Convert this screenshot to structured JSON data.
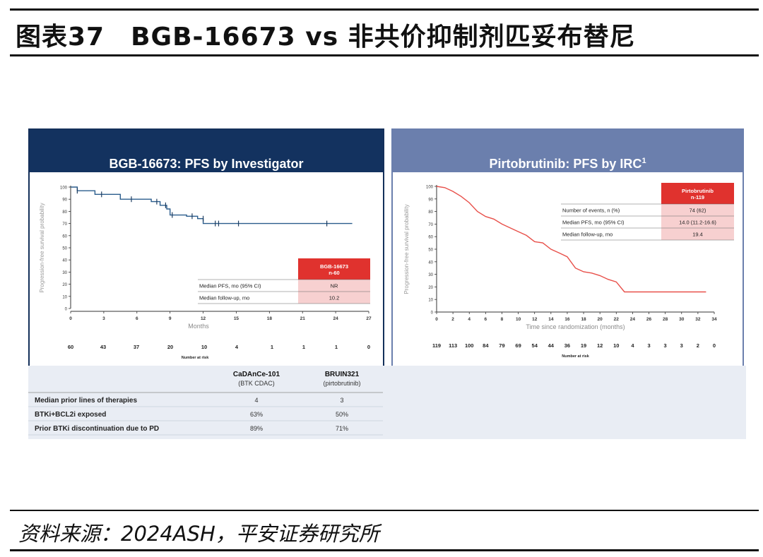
{
  "header": {
    "title": "图表37　BGB-16673 vs 非共价抑制剂匹妥布替尼"
  },
  "footer": {
    "source": "资料来源：2024ASH，平安证券研究所"
  },
  "colors": {
    "left_header": "#13325f",
    "right_header": "#6b7fad",
    "left_curve": "#2a5c8c",
    "right_curve": "#e8504a",
    "highlight": "#f6c9c9",
    "badge": "#e0322e"
  },
  "chart_data": [
    {
      "type": "line",
      "title": "BGB-16673: PFS by Investigator",
      "xlabel": "Months",
      "ylabel": "Progression-free survival probability",
      "xlim": [
        0,
        27
      ],
      "ylim": [
        0,
        100
      ],
      "xticks": [
        0,
        3,
        6,
        9,
        12,
        15,
        18,
        21,
        24,
        27
      ],
      "yticks": [
        0,
        10,
        20,
        30,
        40,
        50,
        60,
        70,
        80,
        90,
        100
      ],
      "series": [
        {
          "name": "BGB-16673",
          "x": [
            0,
            0.6,
            0.6,
            2.2,
            2.2,
            4.5,
            4.5,
            7.3,
            7.3,
            8.1,
            8.1,
            8.7,
            8.7,
            9.0,
            9.0,
            10.5,
            10.5,
            11.5,
            11.5,
            12.0,
            12.0,
            25.5
          ],
          "y": [
            100,
            100,
            97,
            97,
            94,
            94,
            90,
            90,
            88,
            88,
            85,
            85,
            82,
            82,
            77,
            77,
            76,
            76,
            74,
            74,
            70,
            70
          ]
        }
      ],
      "censored": {
        "x": [
          0.6,
          2.8,
          5.5,
          7.8,
          8.6,
          9.2,
          11.0,
          12.0,
          13.1,
          13.4,
          15.2,
          23.2
        ],
        "y": [
          97,
          94,
          90,
          88,
          85,
          77,
          76,
          74,
          70,
          70,
          70,
          70
        ]
      },
      "risk_table": {
        "label": "Number at risk",
        "values": [
          "60",
          "43",
          "37",
          "20",
          "10",
          "4",
          "1",
          "1",
          "1",
          "0"
        ]
      },
      "stats": {
        "badge": [
          "BGB-16673",
          "n-60"
        ],
        "rows": [
          {
            "label": "Median PFS, mo (95% CI)",
            "value": "NR"
          },
          {
            "label": "Median follow-up, mo",
            "value": "10.2"
          }
        ]
      }
    },
    {
      "type": "line",
      "title": "Pirtobrutinib: PFS by IRC",
      "title_sup": "1",
      "xlabel": "Time since randomization (months)",
      "ylabel": "Progression-free survival probability",
      "xlim": [
        0,
        34
      ],
      "ylim": [
        0,
        100
      ],
      "xticks": [
        0,
        2,
        4,
        6,
        8,
        10,
        12,
        14,
        16,
        18,
        20,
        22,
        24,
        26,
        28,
        30,
        32,
        34
      ],
      "yticks": [
        0,
        10,
        20,
        30,
        40,
        50,
        60,
        70,
        80,
        90,
        100
      ],
      "series": [
        {
          "name": "Pirtobrutinib",
          "x": [
            0,
            1,
            2,
            3,
            4,
            5,
            6,
            7,
            8,
            9,
            10,
            11,
            12,
            13,
            14,
            15,
            16,
            17,
            18,
            19,
            20,
            21,
            22,
            23,
            24,
            25,
            26,
            27,
            28,
            29,
            30,
            31,
            32,
            33
          ],
          "y": [
            100,
            99,
            96,
            92,
            87,
            80,
            76,
            74,
            70,
            67,
            64,
            61,
            56,
            55,
            50,
            47,
            44,
            35,
            32,
            31,
            29,
            26,
            24,
            16,
            16,
            16,
            16,
            16,
            16,
            16,
            16,
            16,
            16,
            16
          ]
        }
      ],
      "risk_table": {
        "label": "Number at risk",
        "values": [
          "119",
          "113",
          "100",
          "84",
          "79",
          "69",
          "54",
          "44",
          "36",
          "19",
          "12",
          "10",
          "4",
          "3",
          "3",
          "3",
          "2",
          "0"
        ]
      },
      "stats": {
        "badge": [
          "Pirtobrutinib",
          "n-119"
        ],
        "rows": [
          {
            "label": "Number of events, n (%)",
            "value": "74 (62)"
          },
          {
            "label": "Median PFS, mo (95% CI)",
            "value": "14.0 (11.2-16.6)"
          },
          {
            "label": "Median follow-up, mo",
            "value": "19.4"
          }
        ]
      }
    }
  ],
  "comparison": {
    "columns": [
      {
        "name": "CaDAnCe-101",
        "sub": "(BTK CDAC)"
      },
      {
        "name": "BRUIN321",
        "sub": "(pirtobrutinib)"
      }
    ],
    "rows": [
      {
        "label": "Median prior lines of therapies",
        "values": [
          "4",
          "3"
        ]
      },
      {
        "label": "BTKi+BCL2i exposed",
        "values": [
          "63%",
          "50%"
        ]
      },
      {
        "label": "Prior BTKi discontinuation due to PD",
        "values": [
          "89%",
          "71%"
        ]
      }
    ]
  }
}
